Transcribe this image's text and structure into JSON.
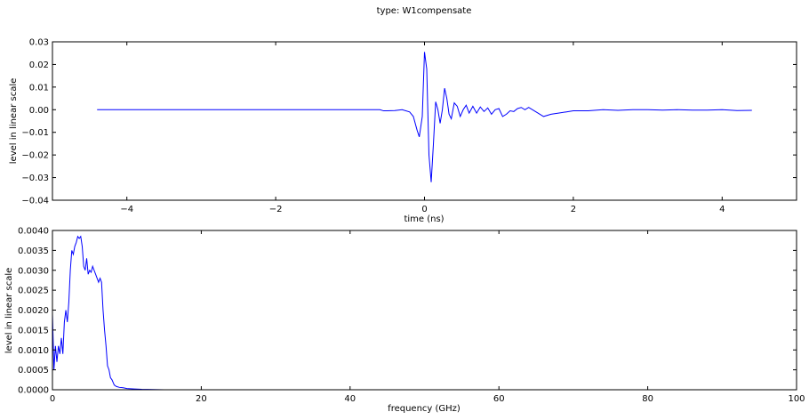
{
  "figure": {
    "title": "type: W1compensate"
  },
  "chart_data": [
    {
      "type": "line",
      "xlabel": "time (ns)",
      "ylabel": "level in linear scale",
      "xlim": [
        -5,
        5
      ],
      "ylim": [
        -0.04,
        0.03
      ],
      "xticks": [
        -4,
        -2,
        0,
        2,
        4
      ],
      "yticks": [
        -0.04,
        -0.03,
        -0.02,
        -0.01,
        0.0,
        0.01,
        0.02,
        0.03
      ],
      "xtick_labels": [
        "−4",
        "−2",
        "0",
        "2",
        "4"
      ],
      "ytick_labels": [
        "−0.04",
        "−0.03",
        "−0.02",
        "−0.01",
        "0.00",
        "0.01",
        "0.02",
        "0.03"
      ],
      "grid": false,
      "line_color": "#0000ff",
      "series": [
        {
          "x": [
            -4.4,
            -0.6,
            -0.55,
            -0.5,
            -0.4,
            -0.3,
            -0.2,
            -0.15,
            -0.1,
            -0.07,
            -0.03,
            0.0,
            0.03,
            0.06,
            0.09,
            0.12,
            0.15,
            0.18,
            0.21,
            0.24,
            0.27,
            0.3,
            0.33,
            0.36,
            0.4,
            0.44,
            0.48,
            0.52,
            0.56,
            0.6,
            0.65,
            0.7,
            0.75,
            0.8,
            0.85,
            0.9,
            0.95,
            1.0,
            1.05,
            1.1,
            1.15,
            1.2,
            1.25,
            1.3,
            1.35,
            1.4,
            1.5,
            1.6,
            1.7,
            1.8,
            1.9,
            2.0,
            2.2,
            2.4,
            2.6,
            2.8,
            3.0,
            3.2,
            3.4,
            3.6,
            3.8,
            4.0,
            4.2,
            4.4
          ],
          "y": [
            0.0,
            0.0,
            -0.0005,
            -0.0005,
            -0.0004,
            0.0,
            -0.001,
            -0.003,
            -0.009,
            -0.012,
            -0.003,
            0.0255,
            0.018,
            -0.02,
            -0.032,
            -0.015,
            0.0035,
            0.0,
            -0.006,
            0.0,
            0.0095,
            0.005,
            -0.002,
            -0.004,
            0.003,
            0.0015,
            -0.003,
            0.0,
            0.002,
            -0.0015,
            0.0015,
            -0.0015,
            0.0012,
            -0.0008,
            0.0008,
            -0.002,
            0.0,
            0.0005,
            -0.003,
            -0.002,
            -0.0005,
            -0.0008,
            0.0005,
            0.001,
            0.0,
            0.001,
            -0.001,
            -0.003,
            -0.002,
            -0.0015,
            -0.001,
            -0.0005,
            -0.0005,
            0.0,
            -0.0003,
            0.0,
            0.0,
            -0.0002,
            0.0,
            -0.0002,
            -0.0002,
            0.0,
            -0.0004,
            -0.0003
          ]
        }
      ]
    },
    {
      "type": "line",
      "xlabel": "frequency (GHz)",
      "ylabel": "level in linear scale",
      "xlim": [
        0,
        100
      ],
      "ylim": [
        0.0,
        0.004
      ],
      "xticks": [
        0,
        20,
        40,
        60,
        80,
        100
      ],
      "yticks": [
        0.0,
        0.0005,
        0.001,
        0.0015,
        0.002,
        0.0025,
        0.003,
        0.0035,
        0.004
      ],
      "xtick_labels": [
        "0",
        "20",
        "40",
        "60",
        "80",
        "100"
      ],
      "ytick_labels": [
        "0.0000",
        "0.0005",
        "0.0010",
        "0.0015",
        "0.0020",
        "0.0025",
        "0.0030",
        "0.0035",
        "0.0040"
      ],
      "grid": false,
      "line_color": "#0000ff",
      "series": [
        {
          "x": [
            0.0,
            0.2,
            0.4,
            0.6,
            0.8,
            1.0,
            1.2,
            1.4,
            1.6,
            1.8,
            2.0,
            2.2,
            2.4,
            2.6,
            2.8,
            3.0,
            3.2,
            3.4,
            3.6,
            3.8,
            4.0,
            4.2,
            4.4,
            4.6,
            4.8,
            5.0,
            5.2,
            5.4,
            5.6,
            5.8,
            6.0,
            6.2,
            6.4,
            6.6,
            6.8,
            7.0,
            7.2,
            7.4,
            7.6,
            7.8,
            8.0,
            8.3,
            8.6,
            9.0,
            9.5,
            10.0,
            11.0,
            12.0,
            15.0,
            20.0,
            40.0,
            60.0,
            80.0,
            100.0
          ],
          "y": [
            0.0019,
            0.0005,
            0.0011,
            0.0007,
            0.0011,
            0.0009,
            0.0013,
            0.0009,
            0.0017,
            0.002,
            0.0017,
            0.0022,
            0.003,
            0.0035,
            0.0034,
            0.0036,
            0.0037,
            0.00385,
            0.0038,
            0.00385,
            0.0036,
            0.0031,
            0.003,
            0.0033,
            0.0029,
            0.003,
            0.00295,
            0.0031,
            0.003,
            0.0029,
            0.0028,
            0.0027,
            0.0028,
            0.0027,
            0.002,
            0.0015,
            0.0011,
            0.0006,
            0.0005,
            0.0003,
            0.00025,
            0.00012,
            8e-05,
            6e-05,
            5e-05,
            3e-05,
            2e-05,
            1e-05,
            0.0,
            0.0,
            0.0,
            0.0,
            0.0,
            0.0
          ]
        }
      ]
    }
  ]
}
